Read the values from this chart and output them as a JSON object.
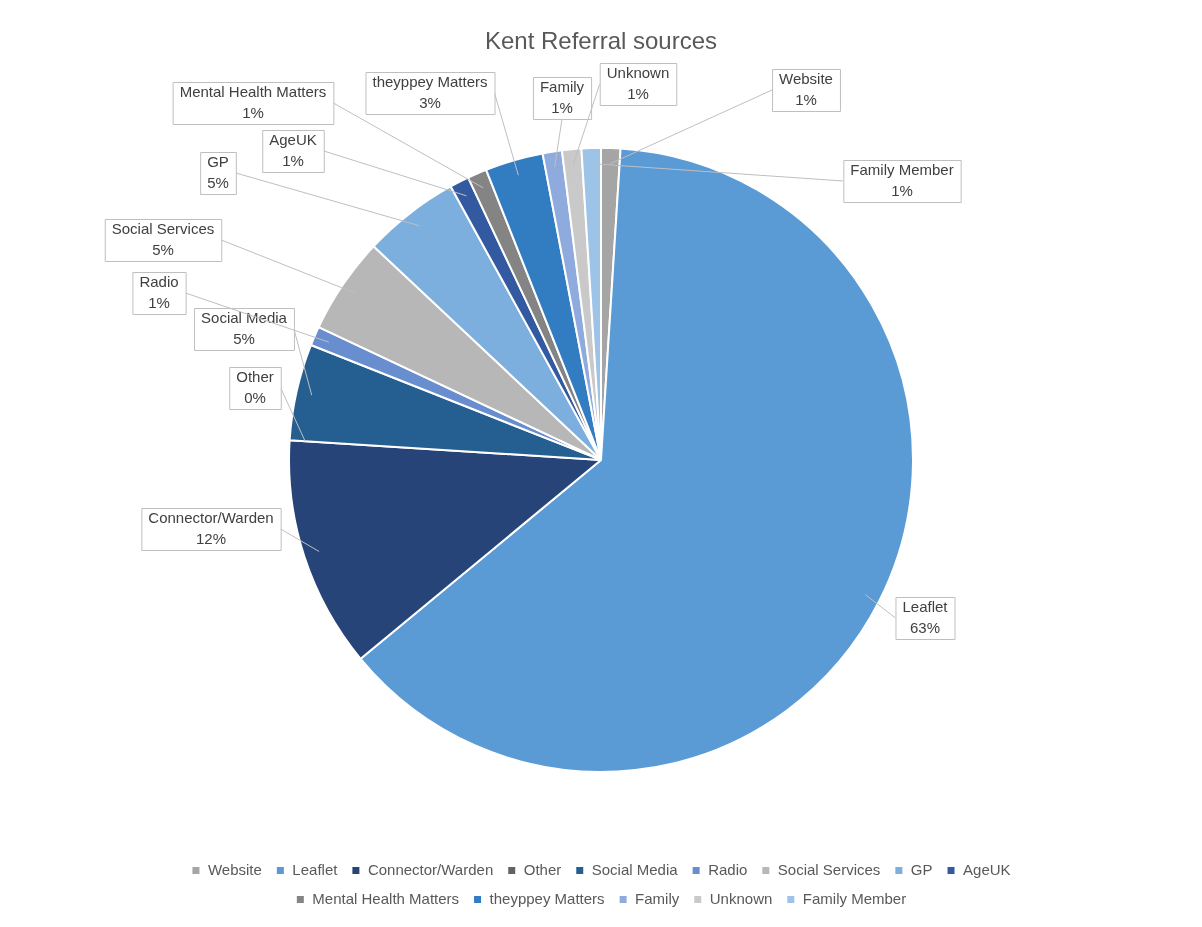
{
  "chart_data": {
    "type": "pie",
    "title": "Kent Referral sources",
    "categories": [
      "Website",
      "Leaflet",
      "Connector/Warden",
      "Other",
      "Social Media",
      "Radio",
      "Social Services",
      "GP",
      "AgeUK",
      "Mental Health Matters",
      "theyppey Matters",
      "Family",
      "Unknown",
      "Family Member"
    ],
    "values": [
      1,
      63,
      12,
      0,
      5,
      1,
      5,
      5,
      1,
      1,
      3,
      1,
      1,
      1
    ],
    "value_labels": [
      "1%",
      "63%",
      "12%",
      "0%",
      "5%",
      "1%",
      "5%",
      "5%",
      "1%",
      "1%",
      "3%",
      "1%",
      "1%",
      "1%"
    ],
    "colors": [
      "#a5a5a5",
      "#5b9bd5",
      "#264478",
      "#636363",
      "#255e91",
      "#698ed0",
      "#b7b7b7",
      "#7cafdd",
      "#335aa1",
      "#848484",
      "#327dc2",
      "#8faadc",
      "#c9c9c9",
      "#9dc3e6"
    ],
    "legend": "bottom"
  }
}
